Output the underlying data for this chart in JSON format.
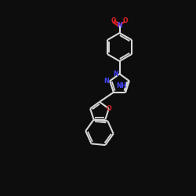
{
  "bg_color": "#0d0d0d",
  "bond_color": "#d8d8d8",
  "N_color": "#4444ff",
  "O_color": "#dd2222",
  "figsize": [
    2.5,
    2.5
  ],
  "dpi": 100,
  "xlim": [
    0,
    10
  ],
  "ylim": [
    0,
    10
  ]
}
